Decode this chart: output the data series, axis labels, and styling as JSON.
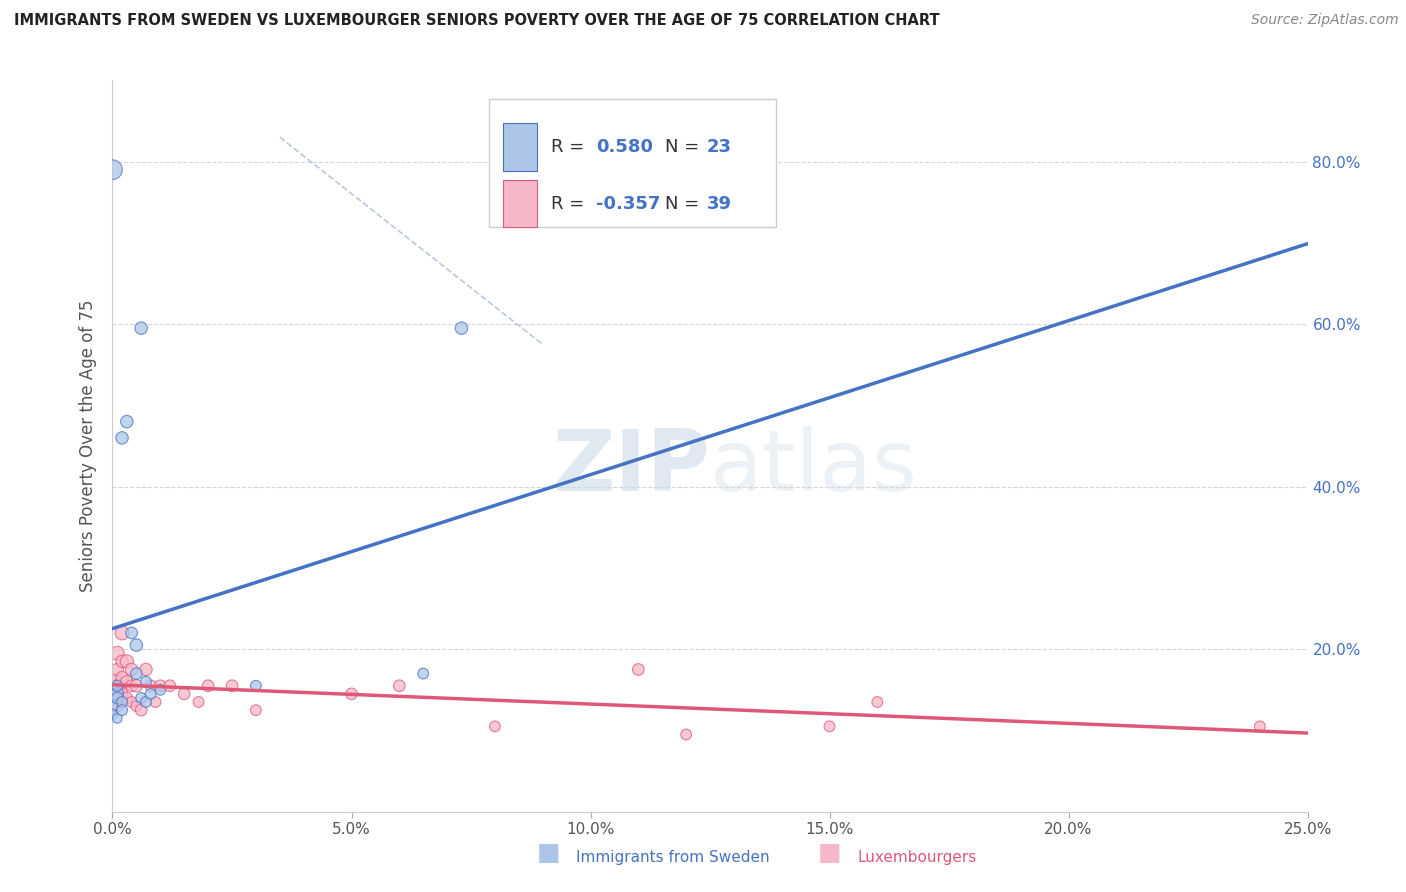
{
  "title": "IMMIGRANTS FROM SWEDEN VS LUXEMBOURGER SENIORS POVERTY OVER THE AGE OF 75 CORRELATION CHART",
  "source": "Source: ZipAtlas.com",
  "ylabel": "Seniors Poverty Over the Age of 75",
  "watermark": "ZIPatlas",
  "xlim": [
    0.0,
    0.25
  ],
  "ylim": [
    0.0,
    0.9
  ],
  "series1_color": "#adc6e8",
  "series2_color": "#f5b8c8",
  "line1_color": "#4472c4",
  "line2_color": "#e05878",
  "r1": 0.58,
  "n1": 23,
  "r2": -0.357,
  "n2": 39,
  "sweden_x": [
    0.0,
    0.0,
    0.0,
    0.001,
    0.001,
    0.001,
    0.001,
    0.002,
    0.002,
    0.002,
    0.003,
    0.004,
    0.005,
    0.005,
    0.006,
    0.006,
    0.007,
    0.007,
    0.008,
    0.01,
    0.03,
    0.065,
    0.073
  ],
  "sweden_y": [
    0.79,
    0.13,
    0.12,
    0.145,
    0.14,
    0.155,
    0.115,
    0.46,
    0.135,
    0.125,
    0.48,
    0.22,
    0.205,
    0.17,
    0.595,
    0.14,
    0.135,
    0.16,
    0.145,
    0.15,
    0.155,
    0.17,
    0.595
  ],
  "sweden_s": [
    200,
    60,
    50,
    80,
    70,
    60,
    50,
    80,
    60,
    60,
    80,
    70,
    80,
    70,
    80,
    60,
    60,
    60,
    60,
    60,
    60,
    60,
    80
  ],
  "lux_x": [
    0.0,
    0.0,
    0.0,
    0.001,
    0.001,
    0.001,
    0.001,
    0.001,
    0.002,
    0.002,
    0.002,
    0.002,
    0.003,
    0.003,
    0.003,
    0.004,
    0.004,
    0.004,
    0.005,
    0.005,
    0.006,
    0.007,
    0.008,
    0.009,
    0.01,
    0.012,
    0.015,
    0.018,
    0.02,
    0.025,
    0.03,
    0.05,
    0.06,
    0.08,
    0.11,
    0.12,
    0.15,
    0.16,
    0.24
  ],
  "lux_y": [
    0.155,
    0.145,
    0.13,
    0.195,
    0.175,
    0.155,
    0.145,
    0.13,
    0.22,
    0.185,
    0.165,
    0.145,
    0.185,
    0.16,
    0.14,
    0.175,
    0.155,
    0.135,
    0.155,
    0.13,
    0.125,
    0.175,
    0.155,
    0.135,
    0.155,
    0.155,
    0.145,
    0.135,
    0.155,
    0.155,
    0.125,
    0.145,
    0.155,
    0.105,
    0.175,
    0.095,
    0.105,
    0.135,
    0.105
  ],
  "lux_s": [
    300,
    150,
    80,
    100,
    80,
    80,
    80,
    70,
    100,
    80,
    80,
    70,
    90,
    80,
    70,
    80,
    70,
    60,
    80,
    60,
    70,
    80,
    70,
    60,
    70,
    70,
    70,
    60,
    70,
    70,
    60,
    70,
    70,
    60,
    70,
    60,
    60,
    60,
    60
  ]
}
